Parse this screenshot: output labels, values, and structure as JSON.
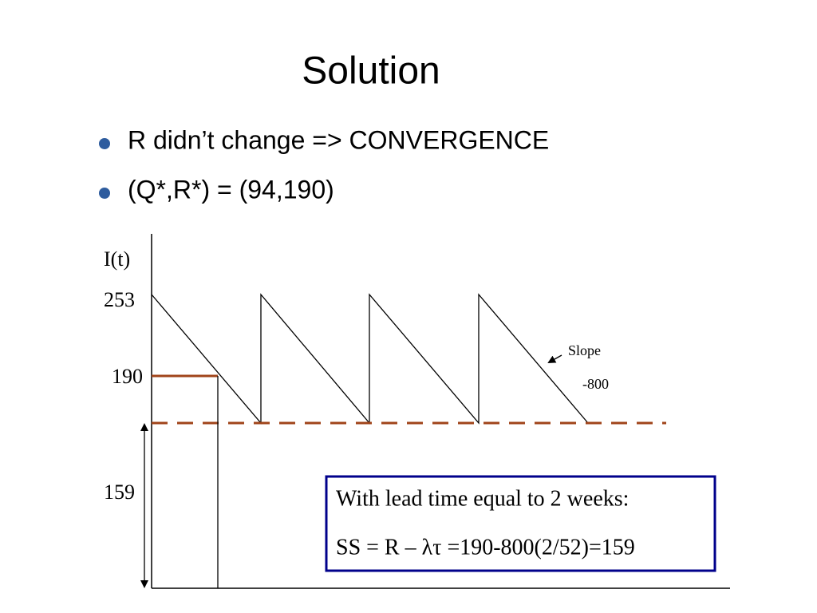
{
  "title": "Solution",
  "bullets": [
    "R didn’t change => CONVERGENCE",
    "(Q*,R*) = (94,190)"
  ],
  "diagram": {
    "y_axis_label": "I(t)",
    "level_labels": [
      "253",
      "190",
      "159"
    ],
    "slope_label": "Slope",
    "slope_value": "-800",
    "note": {
      "lines": [
        "With lead time equal to 2 weeks:",
        "SS = R – λτ =190-800(2/52)=159"
      ]
    }
  }
}
